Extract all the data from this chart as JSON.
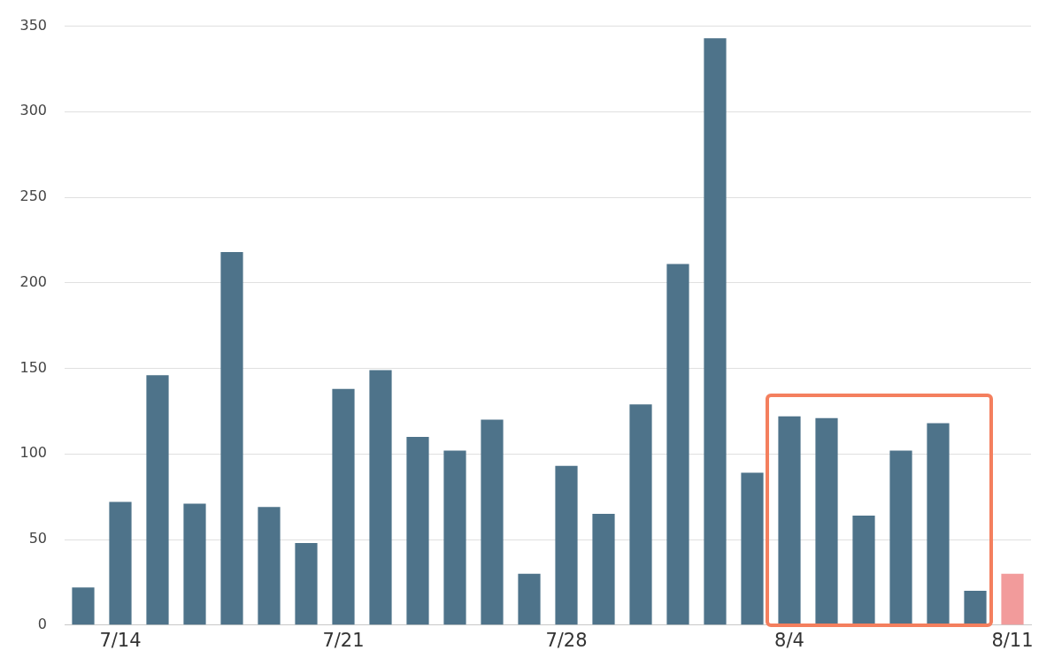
{
  "chart_data": {
    "type": "bar",
    "categories": [
      null,
      "7/14",
      null,
      null,
      null,
      null,
      null,
      "7/21",
      null,
      null,
      null,
      null,
      null,
      "7/28",
      null,
      null,
      null,
      null,
      null,
      "8/4",
      null,
      null,
      null,
      null,
      null,
      "8/11"
    ],
    "values": [
      22,
      72,
      146,
      71,
      218,
      69,
      48,
      138,
      149,
      110,
      102,
      120,
      30,
      93,
      65,
      129,
      211,
      343,
      89,
      122,
      121,
      64,
      102,
      118,
      20,
      30
    ],
    "colors": [
      "#4e738a",
      "#4e738a",
      "#4e738a",
      "#4e738a",
      "#4e738a",
      "#4e738a",
      "#4e738a",
      "#4e738a",
      "#4e738a",
      "#4e738a",
      "#4e738a",
      "#4e738a",
      "#4e738a",
      "#4e738a",
      "#4e738a",
      "#4e738a",
      "#4e738a",
      "#4e738a",
      "#4e738a",
      "#4e738a",
      "#4e738a",
      "#4e738a",
      "#4e738a",
      "#4e738a",
      "#4e738a",
      "#f29b9b"
    ],
    "ylim": [
      0,
      350
    ],
    "yticks": [
      0,
      50,
      100,
      150,
      200,
      250,
      300,
      350
    ],
    "grid": "y",
    "legend": false
  }
}
